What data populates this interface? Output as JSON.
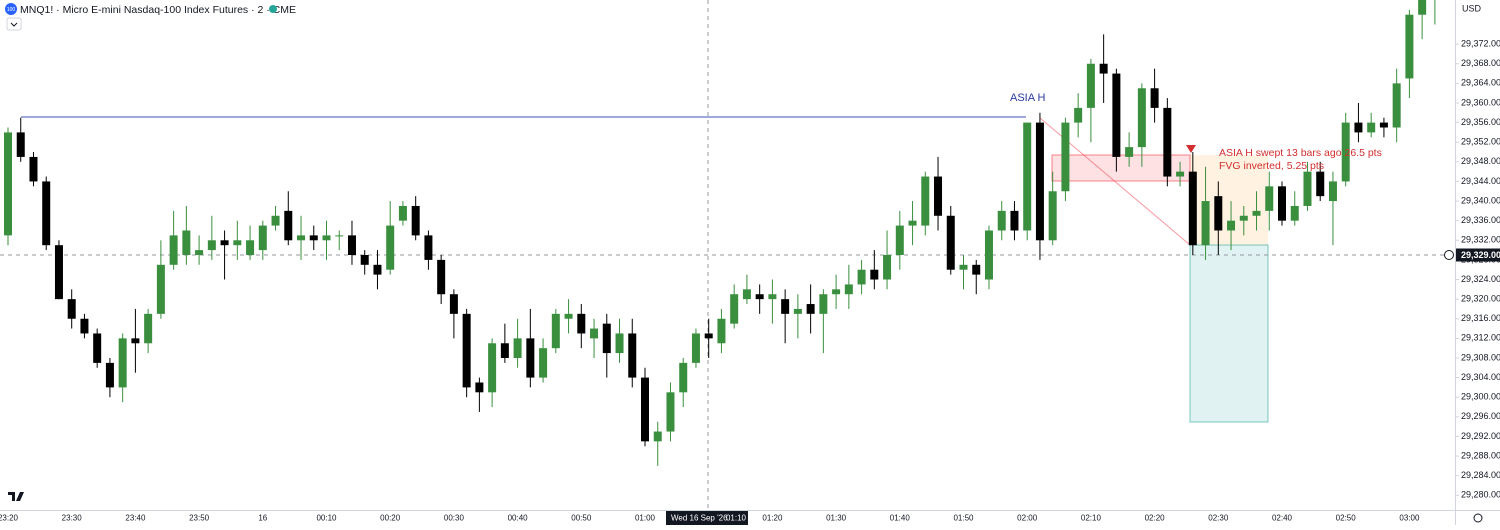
{
  "header": {
    "logo": "100",
    "title": "MNQ1! · Micro E-mini Nasdaq-100 Index Futures · 2 · CME",
    "currency": "USD"
  },
  "chart_data": {
    "type": "candlestick",
    "up_color": "#3a8f3e",
    "down_color": "#000000",
    "grid": false,
    "categories": [
      "23:20",
      null,
      null,
      null,
      null,
      "23:30",
      null,
      null,
      null,
      null,
      "23:40",
      null,
      null,
      null,
      null,
      "23:50",
      null,
      null,
      null,
      null,
      "16",
      null,
      null,
      null,
      null,
      "00:10",
      null,
      null,
      null,
      null,
      "00:20",
      null,
      null,
      null,
      null,
      "00:30",
      null,
      null,
      null,
      null,
      "00:40",
      null,
      null,
      null,
      null,
      "00:50",
      null,
      null,
      null,
      null,
      "01:00",
      null,
      null,
      null,
      null,
      "01:10",
      null,
      null,
      null,
      null,
      "01:20",
      null,
      null,
      null,
      null,
      "01:30",
      null,
      null,
      null,
      null,
      "01:40",
      null,
      null,
      null,
      null,
      "01:50",
      null,
      null,
      null,
      null,
      "02:00",
      null,
      null,
      null,
      null,
      "02:10",
      null,
      null,
      null,
      null,
      "02:20",
      null,
      null,
      null,
      null,
      "02:30",
      null,
      null,
      null,
      null,
      "02:40",
      null,
      null,
      null,
      null,
      "02:50",
      null,
      null,
      null,
      null,
      "03:00",
      null,
      null
    ],
    "open": [
      29333,
      29354,
      29349,
      29344,
      29331,
      29320,
      29316,
      29313,
      29307,
      29302,
      29312,
      29311,
      29317,
      29327,
      29329,
      29329,
      29330,
      29332,
      29331,
      29329,
      29330,
      29335,
      29338,
      29332,
      29333,
      29332,
      29333,
      29333,
      29329,
      29327,
      29326,
      29336,
      29339,
      29333,
      29328,
      29321,
      29317,
      29303,
      29301,
      29311,
      29308,
      29312,
      29304,
      29310,
      29316,
      29317,
      29312,
      29315,
      29309,
      29313,
      29304,
      29291,
      29293,
      29301,
      29307,
      29313,
      29311,
      29315,
      29320,
      29321,
      29320,
      29320,
      29317,
      29319,
      29317,
      29321,
      29321,
      29323,
      29326,
      29324,
      29329,
      29335,
      29335,
      29345,
      29337,
      29326,
      29327,
      29324,
      29334,
      29338,
      29334,
      29356,
      29332,
      29342,
      29356,
      29359,
      29368,
      29366,
      29349,
      29351,
      29363,
      29359,
      29345,
      29346,
      29331,
      29341,
      29334,
      29336,
      29337,
      29338,
      29343,
      29336,
      29339,
      29346,
      29340,
      29344,
      29356,
      29354,
      29356,
      29355,
      29365,
      29378,
      29382
    ],
    "high": [
      29355,
      29357,
      29350,
      29345,
      29332,
      29322,
      29317,
      29314,
      29308,
      29313,
      29318,
      29318,
      29332,
      29338,
      29339,
      29333,
      29337,
      29334,
      29336,
      29335,
      29336,
      29339,
      29342,
      29337,
      29335,
      29336,
      29334,
      29336,
      29330,
      29330,
      29340,
      29340,
      29341,
      29334,
      29329,
      29322,
      29318,
      29304,
      29312,
      29315,
      29316,
      29318,
      29312,
      29318,
      29320,
      29319,
      29316,
      29317,
      29316,
      29316,
      29306,
      29295,
      29303,
      29308,
      29314,
      29316,
      29318,
      29323,
      29325,
      29323,
      29324,
      29322,
      29321,
      29323,
      29322,
      29325,
      29327,
      29328,
      29330,
      29334,
      29338,
      29340,
      29346,
      29349,
      29339,
      29329,
      29328,
      29335,
      29340,
      29340,
      29356,
      29358,
      29346,
      29357,
      29362,
      29369,
      29374,
      29367,
      29354,
      29364,
      29367,
      29361,
      29348,
      29350,
      29347,
      29344,
      29340,
      29339,
      29342,
      29346,
      29344,
      29342,
      29348,
      29348,
      29346,
      29358,
      29360,
      29358,
      29357,
      29367,
      29379,
      29383,
      29384
    ],
    "low": [
      29331,
      29348,
      29343,
      29330,
      29320,
      29314,
      29312,
      29306,
      29300,
      29299,
      29305,
      29309,
      29316,
      29326,
      29327,
      29327,
      29328,
      29324,
      29328,
      29328,
      29328,
      29334,
      29331,
      29328,
      29330,
      29328,
      29330,
      29327,
      29325,
      29322,
      29325,
      29335,
      29332,
      29326,
      29319,
      29312,
      29300,
      29297,
      29298,
      29307,
      29306,
      29302,
      29303,
      29309,
      29313,
      29310,
      29308,
      29304,
      29307,
      29302,
      29290,
      29286,
      29291,
      29298,
      29306,
      29308,
      29309,
      29314,
      29319,
      29317,
      29315,
      29311,
      29312,
      29313,
      29309,
      29318,
      29318,
      29321,
      29322,
      29322,
      29326,
      29331,
      29333,
      29334,
      29325,
      29322,
      29321,
      29322,
      29332,
      29332,
      29332,
      29328,
      29331,
      29340,
      29353,
      29352,
      29360,
      29346,
      29347,
      29347,
      29356,
      29343,
      29343,
      29329,
      29328,
      29329,
      29330,
      29333,
      29334,
      29334,
      29335,
      29335,
      29338,
      29340,
      29331,
      29343,
      29352,
      29353,
      29353,
      29352,
      29361,
      29373,
      29376
    ],
    "close": [
      29354,
      29349,
      29344,
      29331,
      29320,
      29316,
      29313,
      29307,
      29302,
      29312,
      29311,
      29317,
      29327,
      29333,
      29334,
      29330,
      29332,
      29331,
      29332,
      29332,
      29335,
      29337,
      29332,
      29333,
      29332,
      29333,
      29333,
      29329,
      29327,
      29325,
      29335,
      29339,
      29333,
      29328,
      29321,
      29317,
      29302,
      29301,
      29311,
      29308,
      29312,
      29304,
      29310,
      29317,
      29317,
      29313,
      29314,
      29309,
      29313,
      29304,
      29291,
      29293,
      29301,
      29307,
      29313,
      29312,
      29316,
      29321,
      29322,
      29320,
      29321,
      29317,
      29318,
      29317,
      29321,
      29322,
      29323,
      29326,
      29324,
      29329,
      29335,
      29336,
      29345,
      29337,
      29326,
      29327,
      29325,
      29334,
      29338,
      29334,
      29356,
      29332,
      29342,
      29356,
      29359,
      29368,
      29366,
      29349,
      29351,
      29363,
      29359,
      29345,
      29346,
      29331,
      29340,
      29334,
      29336,
      29337,
      29338,
      29343,
      29336,
      29339,
      29346,
      29341,
      29344,
      29356,
      29354,
      29356,
      29355,
      29364,
      29378,
      29382,
      29382
    ],
    "ylim": [
      29277,
      29381
    ],
    "yticks": [
      {
        "value": 29280,
        "label": "29,280.00"
      },
      {
        "value": 29284,
        "label": "29,284.00"
      },
      {
        "value": 29288,
        "label": "29,288.00"
      },
      {
        "value": 29292,
        "label": "29,292.00"
      },
      {
        "value": 29296,
        "label": "29,296.00"
      },
      {
        "value": 29300,
        "label": "29,300.00"
      },
      {
        "value": 29304,
        "label": "29,304.00"
      },
      {
        "value": 29308,
        "label": "29,308.00"
      },
      {
        "value": 29312,
        "label": "29,312.00"
      },
      {
        "value": 29316,
        "label": "29,316.00"
      },
      {
        "value": 29320,
        "label": "29,320.00"
      },
      {
        "value": 29324,
        "label": "29,324.00"
      },
      {
        "value": 29328,
        "label": "29,328.00"
      },
      {
        "value": 29332,
        "label": "29,332.00"
      },
      {
        "value": 29336,
        "label": "29,336.00"
      },
      {
        "value": 29340,
        "label": "29,340.00"
      },
      {
        "value": 29344,
        "label": "29,344.00"
      },
      {
        "value": 29348,
        "label": "29,348.00"
      },
      {
        "value": 29352,
        "label": "29,352.00"
      },
      {
        "value": 29356,
        "label": "29,356.00"
      },
      {
        "value": 29360,
        "label": "29,360.00"
      },
      {
        "value": 29364,
        "label": "29,364.00"
      },
      {
        "value": 29368,
        "label": "29,368.00"
      },
      {
        "value": 29372,
        "label": "29,372.00"
      }
    ],
    "crosshair_price": {
      "value": 29329,
      "label": "29,329.00"
    },
    "crosshair_date": "Wed 16 Sep '26",
    "level_label": "ASIA H",
    "annotations": [
      "ASIA H swept  13 bars ago  26.5 pts",
      "FVG inverted, 5.25 pts"
    ]
  }
}
